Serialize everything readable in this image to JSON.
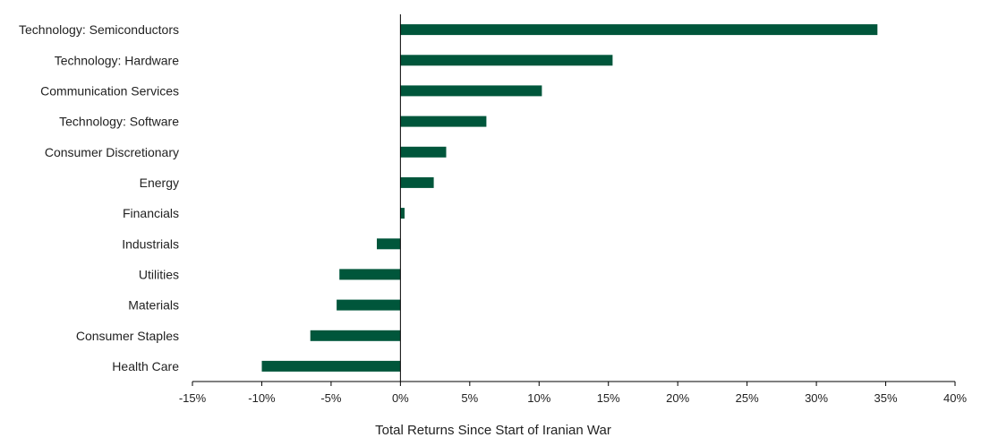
{
  "chart_data": {
    "type": "bar",
    "orientation": "horizontal",
    "title": "",
    "xlabel": "Total Returns Since Start of Iranian War",
    "ylabel": "",
    "xlim": [
      -15,
      40
    ],
    "grid": false,
    "bar_color": "#00563b",
    "categories": [
      "Technology: Semiconductors",
      "Technology: Hardware",
      "Communication Services",
      "Technology: Software",
      "Consumer Discretionary",
      "Energy",
      "Financials",
      "Industrials",
      "Utilities",
      "Materials",
      "Consumer Staples",
      "Health Care"
    ],
    "values": [
      34.4,
      15.3,
      10.2,
      6.2,
      3.3,
      2.4,
      0.3,
      -1.7,
      -4.4,
      -4.6,
      -6.5,
      -10.0
    ],
    "ticks": [
      {
        "value": -15,
        "label": "-15%"
      },
      {
        "value": -10,
        "label": "-10%"
      },
      {
        "value": -5,
        "label": "-5%"
      },
      {
        "value": 0,
        "label": "0%"
      },
      {
        "value": 5,
        "label": "5%"
      },
      {
        "value": 10,
        "label": "10%"
      },
      {
        "value": 15,
        "label": "15%"
      },
      {
        "value": 20,
        "label": "20%"
      },
      {
        "value": 25,
        "label": "25%"
      },
      {
        "value": 30,
        "label": "30%"
      },
      {
        "value": 35,
        "label": "35%"
      },
      {
        "value": 40,
        "label": "40%"
      }
    ]
  }
}
